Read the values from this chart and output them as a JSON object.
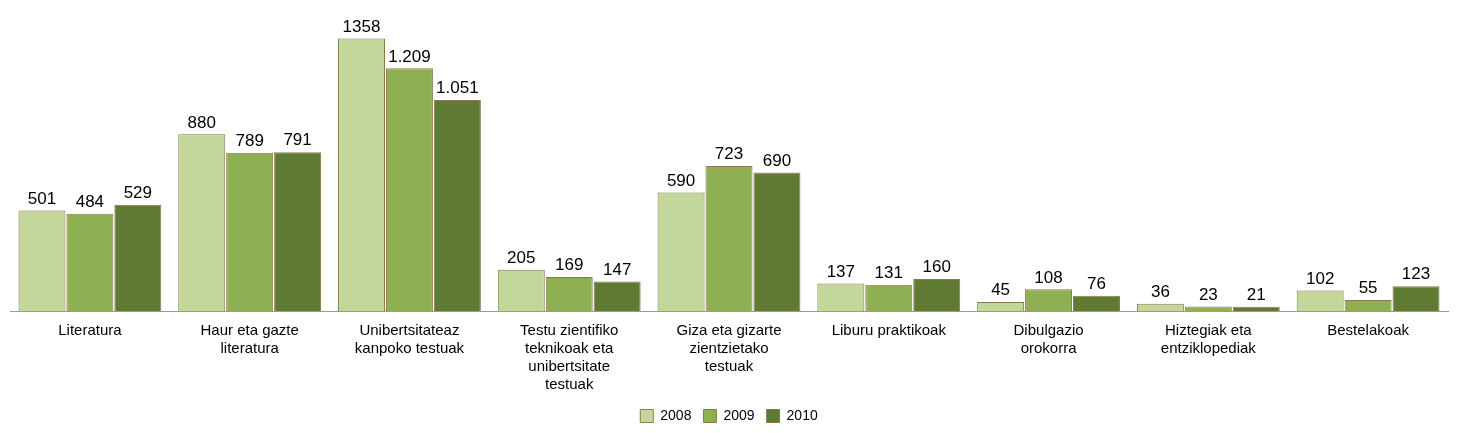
{
  "chart_data": {
    "type": "bar",
    "categories": [
      "Literatura",
      "Haur eta gazte literatura",
      "Unibertsitateaz kanpoko testuak",
      "Testu zientifiko teknikoak eta unibertsitate testuak",
      "Giza eta gizarte zientzietako testuak",
      "Liburu praktikoak",
      "Dibulgazio orokorra",
      "Hiztegiak eta entziklopediak",
      "Bestelakoak"
    ],
    "series": [
      {
        "name": "2008",
        "color": "#c4d79b",
        "values": [
          501,
          880,
          1358,
          205,
          590,
          137,
          45,
          36,
          102
        ],
        "value_labels": [
          "501",
          "880",
          "1358",
          "205",
          "590",
          "137",
          "45",
          "36",
          "102"
        ]
      },
      {
        "name": "2009",
        "color": "#8fb052",
        "values": [
          484,
          789,
          1209,
          169,
          723,
          131,
          108,
          23,
          55
        ],
        "value_labels": [
          "484",
          "789",
          "1.209",
          "169",
          "723",
          "131",
          "108",
          "23",
          "55"
        ]
      },
      {
        "name": "2010",
        "color": "#5f7a33",
        "values": [
          529,
          791,
          1051,
          147,
          690,
          160,
          76,
          21,
          123
        ],
        "value_labels": [
          "529",
          "791",
          "1.051",
          "147",
          "690",
          "160",
          "76",
          "21",
          "123"
        ]
      }
    ],
    "legend": "bottom",
    "grid": false
  }
}
